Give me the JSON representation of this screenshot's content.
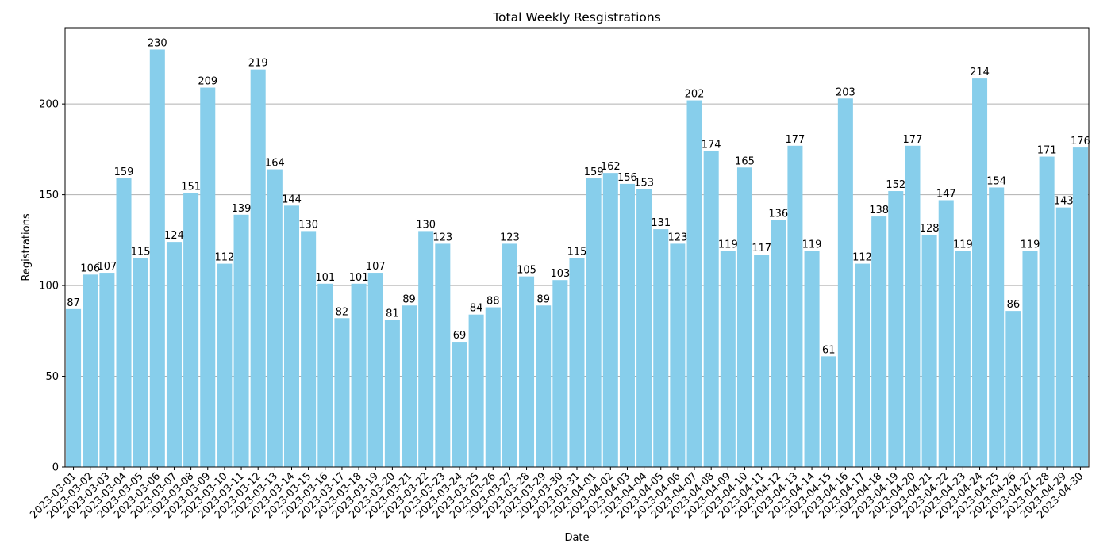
{
  "chart_data": {
    "type": "bar",
    "title": "Total Weekly Resgistrations",
    "xlabel": "Date",
    "ylabel": "Registrations",
    "ylim": [
      0,
      242
    ],
    "yticks": [
      0,
      50,
      100,
      150,
      200
    ],
    "grid": "y",
    "bar_color": "#87CEEB",
    "categories": [
      "2023-03-01",
      "2023-03-02",
      "2023-03-03",
      "2023-03-04",
      "2023-03-05",
      "2023-03-06",
      "2023-03-07",
      "2023-03-08",
      "2023-03-09",
      "2023-03-10",
      "2023-03-11",
      "2023-03-12",
      "2023-03-13",
      "2023-03-14",
      "2023-03-15",
      "2023-03-16",
      "2023-03-17",
      "2023-03-18",
      "2023-03-19",
      "2023-03-20",
      "2023-03-21",
      "2023-03-22",
      "2023-03-23",
      "2023-03-24",
      "2023-03-25",
      "2023-03-26",
      "2023-03-27",
      "2023-03-28",
      "2023-03-29",
      "2023-03-30",
      "2023-03-31",
      "2023-04-01",
      "2023-04-02",
      "2023-04-03",
      "2023-04-04",
      "2023-04-05",
      "2023-04-06",
      "2023-04-07",
      "2023-04-08",
      "2023-04-09",
      "2023-04-10",
      "2023-04-11",
      "2023-04-12",
      "2023-04-13",
      "2023-04-14",
      "2023-04-15",
      "2023-04-16",
      "2023-04-17",
      "2023-04-18",
      "2023-04-19",
      "2023-04-20",
      "2023-04-21",
      "2023-04-22",
      "2023-04-23",
      "2023-04-24",
      "2023-04-25",
      "2023-04-26",
      "2023-04-27",
      "2023-04-28",
      "2023-04-29",
      "2023-04-30"
    ],
    "values": [
      87,
      106,
      107,
      159,
      115,
      230,
      124,
      151,
      209,
      112,
      139,
      219,
      164,
      144,
      130,
      101,
      82,
      101,
      107,
      81,
      89,
      130,
      123,
      69,
      84,
      88,
      123,
      105,
      89,
      103,
      115,
      159,
      162,
      156,
      153,
      131,
      123,
      202,
      174,
      119,
      165,
      117,
      136,
      177,
      119,
      61,
      203,
      112,
      138,
      152,
      177,
      128,
      147,
      119,
      214,
      154,
      86,
      119,
      171,
      143,
      176
    ]
  }
}
